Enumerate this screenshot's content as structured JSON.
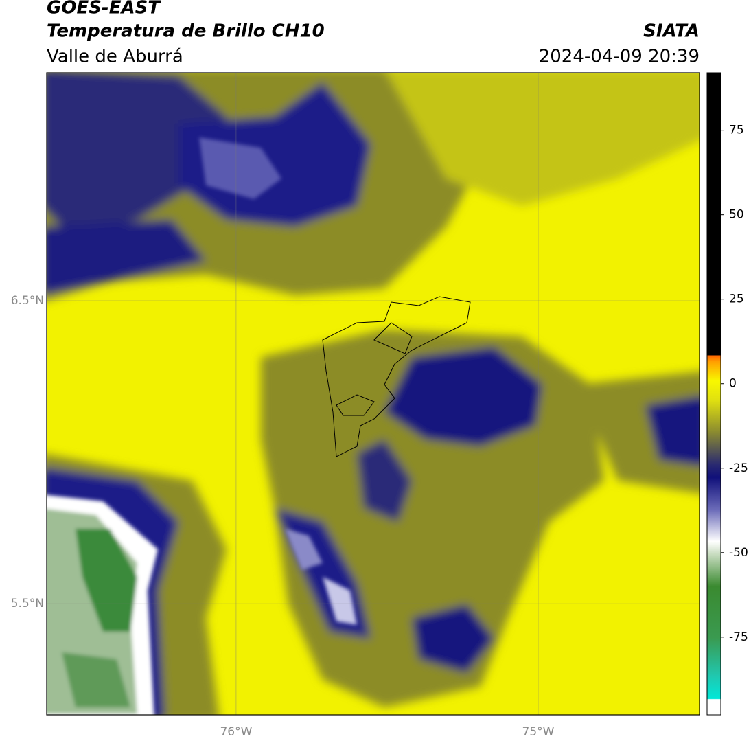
{
  "header": {
    "title": "GOES-EAST",
    "subtitle": "Temperatura de Brillo CH10",
    "region": "Valle de Aburrá",
    "source": "SIATA",
    "datetime": "2024-04-09 20:39"
  },
  "map": {
    "latlim": [
      5.133,
      7.253
    ],
    "lonlim": [
      -76.627,
      -74.466
    ],
    "grid": true,
    "lat_ticks": [
      {
        "value": 6.5,
        "label": "6.5°N"
      },
      {
        "value": 5.5,
        "label": "5.5°N"
      }
    ],
    "lon_ticks": [
      {
        "value": -76,
        "label": "76°W"
      },
      {
        "value": -75,
        "label": "75°W"
      }
    ]
  },
  "colorbar": {
    "clim": [
      -98,
      92
    ],
    "ticks": [
      -75,
      -50,
      -25,
      0,
      25,
      50,
      75
    ]
  }
}
